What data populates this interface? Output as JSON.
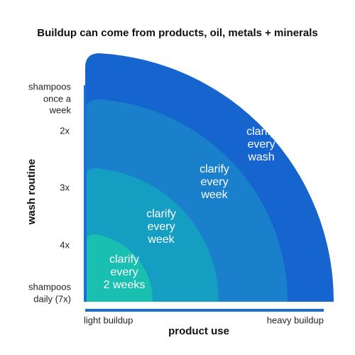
{
  "title": "Buildup can come from products, oil, metals + minerals",
  "y_axis": {
    "label": "wash routine",
    "ticks": [
      [
        "shampoos",
        "once a",
        "week"
      ],
      [
        "2x"
      ],
      [
        "3x"
      ],
      [
        "4x"
      ],
      [
        "shampoos",
        "daily (7x)"
      ]
    ]
  },
  "x_axis": {
    "label": "product use",
    "ticks": [
      "light buildup",
      "heavy buildup"
    ]
  },
  "zones": [
    {
      "label": [
        "clarify",
        "every",
        "2 weeks"
      ]
    },
    {
      "label": [
        "clarify",
        "every",
        "week"
      ]
    },
    {
      "label": [
        "clarify",
        "every",
        "week"
      ]
    },
    {
      "label": [
        "clarify",
        "every",
        "wash"
      ]
    }
  ]
}
